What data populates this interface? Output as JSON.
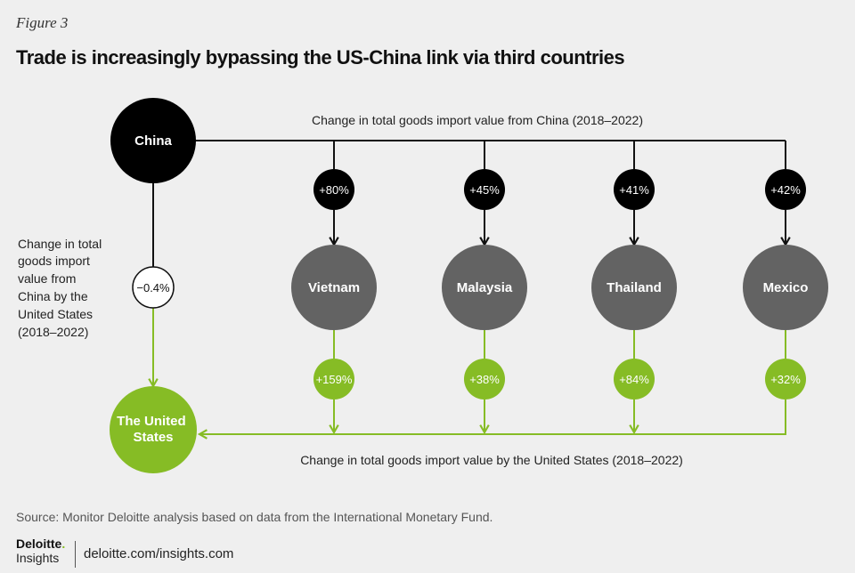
{
  "figure_label": "Figure 3",
  "title": "Trade is increasingly bypassing the US-China link via third countries",
  "top_label": "Change in total goods import value from China (2018–2022)",
  "bottom_label": "Change in total goods import value by the United States (2018–2022)",
  "side_label": [
    "Change in total",
    "goods import",
    "value from",
    "China by the",
    "United States",
    "(2018–2022)"
  ],
  "nodes": {
    "china": "China",
    "us": [
      "The United",
      "States"
    ],
    "china_to_us": "−0.4%"
  },
  "countries": [
    {
      "name": "Vietnam",
      "from_china": "+80%",
      "to_us": "+159%"
    },
    {
      "name": "Malaysia",
      "from_china": "+45%",
      "to_us": "+38%"
    },
    {
      "name": "Thailand",
      "from_china": "+41%",
      "to_us": "+84%"
    },
    {
      "name": "Mexico",
      "from_china": "+42%",
      "to_us": "+32%"
    }
  ],
  "colors": {
    "background": "#efefef",
    "china": "#000000",
    "country": "#636363",
    "green": "#86bc25",
    "line": "#111111"
  },
  "footer": {
    "source": "Source: Monitor Deloitte analysis based on data from the International Monetary Fund.",
    "logo_main": "Deloitte",
    "logo_dot": ".",
    "logo_sub": "Insights",
    "link": "deloitte.com/insights.com"
  }
}
